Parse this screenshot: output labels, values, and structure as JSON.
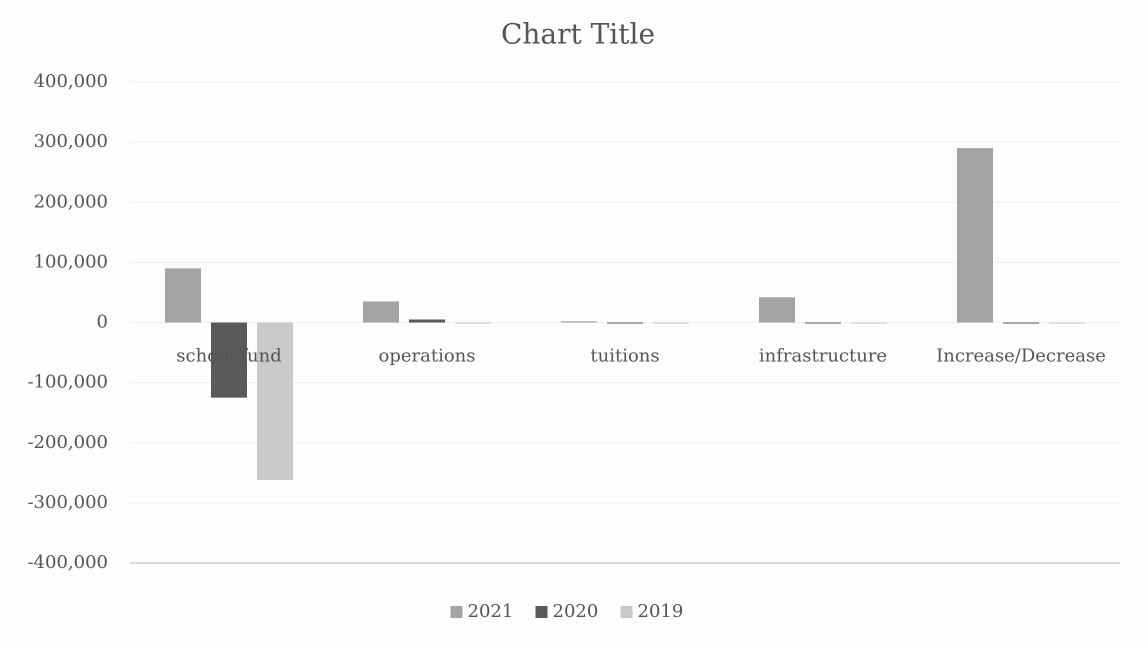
{
  "chart_data": {
    "type": "bar",
    "title": "Chart Title",
    "categories": [
      "school fund",
      "operations",
      "tuitions",
      "infrastructure",
      "Increase/Decrease"
    ],
    "series": [
      {
        "name": "2021",
        "color": "#a3a3a3",
        "values": [
          90000,
          35000,
          2000,
          42000,
          290000
        ]
      },
      {
        "name": "2020",
        "color": "#5a5a5a",
        "values": [
          -125000,
          5000,
          0,
          0,
          0
        ]
      },
      {
        "name": "2019",
        "color": "#c9c9c9",
        "values": [
          -262000,
          0,
          0,
          0,
          0
        ]
      }
    ],
    "ylim": [
      -400000,
      400000
    ],
    "yticks": [
      {
        "value": -400000,
        "label": "-400,000"
      },
      {
        "value": -300000,
        "label": "-300,000"
      },
      {
        "value": -200000,
        "label": "-200,000"
      },
      {
        "value": -100000,
        "label": "-100,000"
      },
      0,
      {
        "value": 100000,
        "label": "100,000"
      },
      {
        "value": 200000,
        "label": "200,000"
      },
      {
        "value": 300000,
        "label": "300,000"
      },
      {
        "value": 400000,
        "label": "400,000"
      }
    ],
    "grid": true,
    "legend": "bottom"
  }
}
